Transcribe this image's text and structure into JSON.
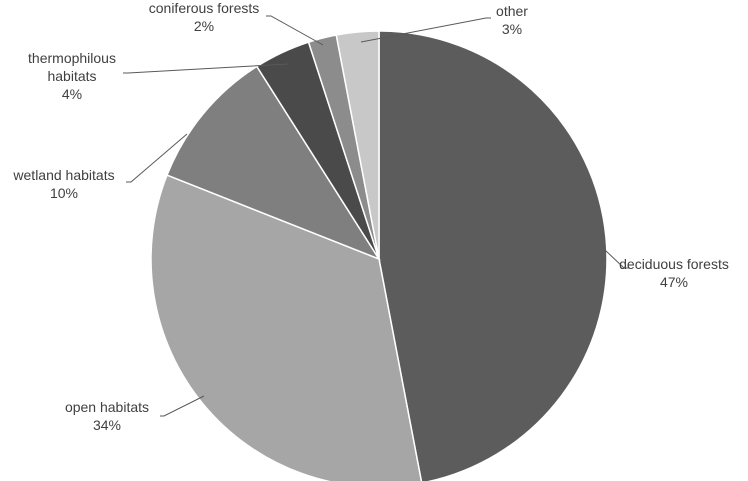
{
  "chart_data": {
    "type": "pie",
    "title": "",
    "start_angle_deg": 0,
    "direction": "clockwise",
    "legend": "none",
    "slices": [
      {
        "key": "deciduous",
        "label": [
          "deciduous forests"
        ],
        "percent_label": "47%",
        "value": 47,
        "color": "#5c5c5c"
      },
      {
        "key": "open",
        "label": [
          "open habitats"
        ],
        "percent_label": "34%",
        "value": 34,
        "color": "#a6a6a6"
      },
      {
        "key": "wetland",
        "label": [
          "wetland habitats"
        ],
        "percent_label": "10%",
        "value": 10,
        "color": "#7f7f7f"
      },
      {
        "key": "thermophilous",
        "label": [
          "thermophilous",
          "habitats"
        ],
        "percent_label": "4%",
        "value": 4,
        "color": "#4a4a4a"
      },
      {
        "key": "coniferous",
        "label": [
          "coniferous forests"
        ],
        "percent_label": "2%",
        "value": 2,
        "color": "#8c8c8c"
      },
      {
        "key": "other",
        "label": [
          "other"
        ],
        "percent_label": "3%",
        "value": 3,
        "color": "#c8c8c8"
      }
    ]
  }
}
